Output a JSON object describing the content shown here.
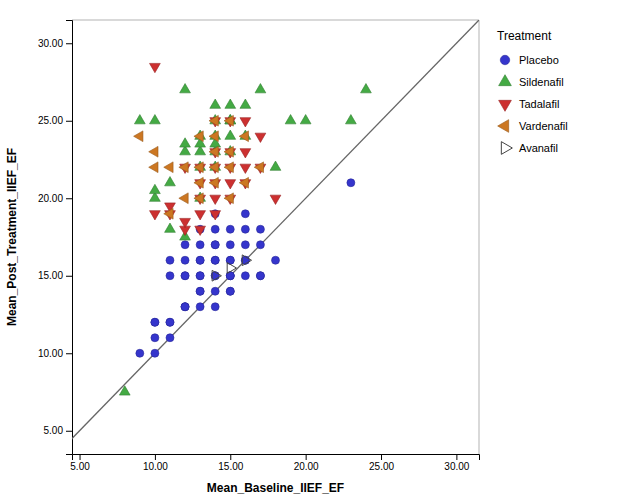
{
  "chart_data": {
    "type": "scatter",
    "xlabel": "Mean_Baseline_IIEF_EF",
    "ylabel": "Mean_Post_Treatment_IIEF_EF",
    "legend_title": "Treatment",
    "legend": "right",
    "grid": false,
    "xlim": [
      4.5,
      31.5
    ],
    "ylim": [
      3.5,
      31.5
    ],
    "xticks": [
      {
        "value": 5,
        "label": "5.00"
      },
      {
        "value": 10,
        "label": "10.00"
      },
      {
        "value": 15,
        "label": "15.00"
      },
      {
        "value": 20,
        "label": "20.00"
      },
      {
        "value": 25,
        "label": "25.00"
      },
      {
        "value": 30,
        "label": "30.00"
      }
    ],
    "yticks": [
      {
        "value": 5,
        "label": "5.00"
      },
      {
        "value": 10,
        "label": "10.00"
      },
      {
        "value": 15,
        "label": "15.00"
      },
      {
        "value": 20,
        "label": "20.00"
      },
      {
        "value": 25,
        "label": "25.00"
      },
      {
        "value": 30,
        "label": "30.00"
      }
    ],
    "diagonal": {
      "x": [
        3,
        32
      ],
      "y": [
        3,
        32
      ],
      "color": "#666666"
    },
    "series": [
      {
        "name": "Placebo",
        "color": "#3535cc",
        "marker": "circle",
        "x": [
          9,
          10,
          10,
          10,
          10,
          11,
          11,
          11,
          11,
          11,
          12,
          12,
          12,
          12,
          12,
          12,
          12,
          13,
          13,
          13,
          13,
          13,
          13,
          13,
          13,
          13,
          14,
          14,
          14,
          14,
          14,
          14,
          14,
          14,
          14,
          14,
          15,
          15,
          15,
          15,
          15,
          15,
          15,
          15,
          15,
          16,
          16,
          16,
          16,
          16,
          16,
          17,
          17,
          17,
          17,
          18,
          23
        ],
        "values": [
          10,
          10,
          11,
          12,
          12,
          11,
          12,
          12,
          15,
          16,
          13,
          13,
          13,
          15,
          15,
          16,
          17,
          13,
          14,
          14,
          15,
          15,
          16,
          16,
          17,
          18,
          13,
          14,
          15,
          15,
          16,
          16,
          17,
          17,
          18,
          19,
          14,
          14,
          15,
          15,
          15,
          16,
          16,
          17,
          18,
          15,
          16,
          16,
          17,
          18,
          19,
          15,
          15,
          17,
          18,
          16,
          21
        ]
      },
      {
        "name": "Sildenafil",
        "color": "#44aa44",
        "marker": "triangle-up",
        "x": [
          8,
          9,
          10,
          10,
          10,
          11,
          11,
          12,
          12,
          12,
          12,
          13,
          13,
          13,
          13,
          13,
          14,
          14,
          14,
          14,
          14,
          14,
          15,
          15,
          15,
          15,
          15,
          16,
          16,
          17,
          18,
          19,
          20,
          23,
          24
        ],
        "values": [
          7.5,
          25,
          20,
          20.5,
          25,
          18,
          21,
          17.5,
          23,
          23.5,
          27,
          20,
          22,
          23,
          23.5,
          24,
          22,
          23,
          23.5,
          24,
          25,
          26,
          23,
          24,
          25,
          25,
          26,
          24,
          26,
          27,
          22,
          25,
          25,
          25,
          27
        ]
      },
      {
        "name": "Tadalafil",
        "color": "#cc3030",
        "marker": "triangle-down",
        "x": [
          10,
          10,
          11,
          11,
          12,
          12,
          12,
          13,
          13,
          13,
          13,
          13,
          14,
          14,
          14,
          14,
          14,
          14,
          15,
          15,
          15,
          15,
          15,
          16,
          16,
          16,
          16,
          17,
          17,
          18
        ],
        "values": [
          19,
          28.5,
          19,
          19.5,
          18,
          18.5,
          22,
          18,
          19,
          20,
          21,
          22,
          19,
          20,
          21,
          22,
          23,
          25,
          20,
          21,
          22,
          23,
          25,
          21,
          22,
          23,
          25,
          22,
          24,
          20
        ]
      },
      {
        "name": "Vardenafil",
        "color": "#cc7722",
        "marker": "triangle-left",
        "x": [
          9,
          10,
          10,
          11,
          11,
          12,
          12,
          13,
          13,
          13,
          13,
          14,
          14,
          14,
          14,
          14,
          15,
          15,
          15,
          15,
          16,
          16,
          17
        ],
        "values": [
          24,
          22,
          23,
          19,
          22,
          20,
          22,
          20,
          21,
          22,
          24,
          21,
          22,
          23,
          24,
          25,
          20,
          22,
          23,
          25,
          21,
          24,
          22
        ]
      },
      {
        "name": "Avanafil",
        "color": "#444444",
        "marker": "triangle-right-open",
        "x": [
          14,
          15,
          16
        ],
        "values": [
          15,
          15.5,
          16
        ]
      }
    ]
  }
}
